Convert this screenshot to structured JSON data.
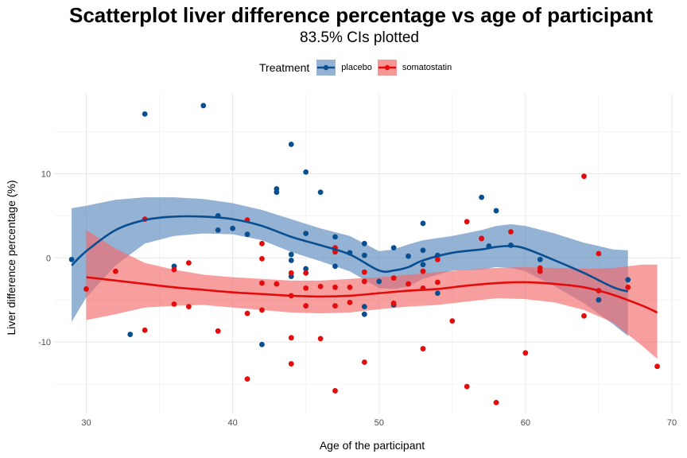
{
  "chart_data": {
    "type": "scatter",
    "title": "Scatterplot liver difference percentage vs age of participant",
    "subtitle": "83.5% CIs plotted",
    "xlabel": "Age of the participant",
    "ylabel": "Liver difference percentage (%)",
    "xlim": [
      27.8,
      70.6
    ],
    "ylim": [
      -18.5,
      19.5
    ],
    "x_ticks": [
      30,
      40,
      50,
      60,
      70
    ],
    "y_ticks": [
      -10,
      0,
      10
    ],
    "grid": true,
    "legend": {
      "title": "Treatment",
      "position": "top"
    },
    "series": [
      {
        "name": "placebo",
        "color": "#084f91",
        "band_color": "#5a88bb",
        "points": [
          [
            29,
            -0.2
          ],
          [
            33,
            -9.1
          ],
          [
            34,
            17.1
          ],
          [
            36,
            -1.0
          ],
          [
            38,
            18.1
          ],
          [
            39,
            5.0
          ],
          [
            39,
            3.3
          ],
          [
            40,
            3.5
          ],
          [
            41,
            2.8
          ],
          [
            42,
            -10.3
          ],
          [
            43,
            8.2
          ],
          [
            43,
            7.8
          ],
          [
            44,
            13.5
          ],
          [
            44,
            0.4
          ],
          [
            44,
            -0.3
          ],
          [
            44,
            -2.2
          ],
          [
            45,
            10.2
          ],
          [
            45,
            2.9
          ],
          [
            45,
            -1.3
          ],
          [
            46,
            7.8
          ],
          [
            47,
            2.5
          ],
          [
            47,
            0.9
          ],
          [
            47,
            -1.0
          ],
          [
            48,
            0.6
          ],
          [
            49,
            1.7
          ],
          [
            49,
            0.3
          ],
          [
            49,
            -5.8
          ],
          [
            49,
            -6.7
          ],
          [
            50,
            -2.8
          ],
          [
            51,
            1.2
          ],
          [
            51,
            -5.6
          ],
          [
            52,
            0.2
          ],
          [
            53,
            4.1
          ],
          [
            53,
            0.9
          ],
          [
            53,
            -0.8
          ],
          [
            54,
            0.3
          ],
          [
            54,
            -4.2
          ],
          [
            57,
            7.2
          ],
          [
            57,
            2.3
          ],
          [
            57.5,
            1.4
          ],
          [
            58,
            5.6
          ],
          [
            59,
            1.5
          ],
          [
            61,
            -0.2
          ],
          [
            65,
            -5.0
          ],
          [
            67,
            -2.6
          ]
        ],
        "smooth": [
          [
            29,
            -0.9
          ],
          [
            30,
            0.8
          ],
          [
            32,
            3.3
          ],
          [
            34,
            4.5
          ],
          [
            36,
            4.9
          ],
          [
            38,
            4.9
          ],
          [
            40,
            4.6
          ],
          [
            42,
            3.8
          ],
          [
            44,
            2.5
          ],
          [
            46,
            1.5
          ],
          [
            48,
            0.4
          ],
          [
            50,
            -1.5
          ],
          [
            51,
            -1.5
          ],
          [
            52,
            -1.1
          ],
          [
            53,
            -0.3
          ],
          [
            55,
            0.6
          ],
          [
            57,
            1.0
          ],
          [
            58,
            1.3
          ],
          [
            59,
            1.4
          ],
          [
            60,
            1.1
          ],
          [
            62,
            -0.3
          ],
          [
            64,
            -1.8
          ],
          [
            66,
            -3.5
          ],
          [
            67,
            -4.0
          ]
        ],
        "ci_upper": [
          [
            29,
            5.9
          ],
          [
            30,
            6.2
          ],
          [
            32,
            6.9
          ],
          [
            34,
            7.2
          ],
          [
            36,
            7.2
          ],
          [
            38,
            7.0
          ],
          [
            40,
            6.5
          ],
          [
            42,
            5.7
          ],
          [
            44,
            4.6
          ],
          [
            46,
            3.5
          ],
          [
            48,
            2.6
          ],
          [
            50,
            0.8
          ],
          [
            51,
            1.0
          ],
          [
            52,
            1.6
          ],
          [
            53,
            2.1
          ],
          [
            55,
            2.6
          ],
          [
            57,
            3.3
          ],
          [
            58,
            3.8
          ],
          [
            59,
            4.0
          ],
          [
            60,
            3.8
          ],
          [
            62,
            2.9
          ],
          [
            64,
            1.8
          ],
          [
            66,
            1.0
          ],
          [
            67,
            0.9
          ]
        ],
        "ci_lower": [
          [
            29,
            -7.6
          ],
          [
            30,
            -4.7
          ],
          [
            32,
            -0.9
          ],
          [
            34,
            1.7
          ],
          [
            36,
            2.6
          ],
          [
            38,
            2.9
          ],
          [
            40,
            2.8
          ],
          [
            42,
            2.1
          ],
          [
            44,
            0.7
          ],
          [
            46,
            -0.4
          ],
          [
            48,
            -1.6
          ],
          [
            50,
            -3.6
          ],
          [
            51,
            -3.7
          ],
          [
            52,
            -3.4
          ],
          [
            53,
            -2.5
          ],
          [
            55,
            -1.5
          ],
          [
            57,
            -1.4
          ],
          [
            58,
            -1.1
          ],
          [
            59,
            -1.2
          ],
          [
            60,
            -1.6
          ],
          [
            62,
            -3.4
          ],
          [
            64,
            -5.4
          ],
          [
            66,
            -7.9
          ],
          [
            67,
            -9.3
          ]
        ]
      },
      {
        "name": "somatostatin",
        "color": "#e30b0b",
        "band_color": "#f36a6a",
        "points": [
          [
            30,
            -3.7
          ],
          [
            32,
            -1.6
          ],
          [
            34,
            4.6
          ],
          [
            34,
            -8.6
          ],
          [
            36,
            -1.4
          ],
          [
            36,
            -5.5
          ],
          [
            37,
            -0.6
          ],
          [
            37,
            -5.8
          ],
          [
            39,
            -8.7
          ],
          [
            41,
            4.5
          ],
          [
            41,
            -6.6
          ],
          [
            41,
            -14.4
          ],
          [
            42,
            1.7
          ],
          [
            42,
            -0.1
          ],
          [
            42,
            -3.0
          ],
          [
            42,
            -6.2
          ],
          [
            43,
            -3.1
          ],
          [
            44,
            -1.8
          ],
          [
            44,
            -4.5
          ],
          [
            44,
            -9.5
          ],
          [
            44,
            -12.6
          ],
          [
            45,
            -1.8
          ],
          [
            45,
            -3.6
          ],
          [
            45,
            -5.7
          ],
          [
            46,
            -3.4
          ],
          [
            46,
            -9.6
          ],
          [
            47,
            1.2
          ],
          [
            47,
            0.7
          ],
          [
            47,
            -3.5
          ],
          [
            47,
            -5.7
          ],
          [
            47,
            -15.8
          ],
          [
            48,
            -3.5
          ],
          [
            48,
            -5.3
          ],
          [
            49,
            -1.7
          ],
          [
            49,
            -2.8
          ],
          [
            49,
            -12.4
          ],
          [
            51,
            -2.4
          ],
          [
            51,
            -5.4
          ],
          [
            52,
            -3.1
          ],
          [
            53,
            -1.6
          ],
          [
            53,
            -3.6
          ],
          [
            53,
            -10.8
          ],
          [
            54,
            -0.2
          ],
          [
            54,
            -2.9
          ],
          [
            55,
            -7.5
          ],
          [
            56,
            4.3
          ],
          [
            56,
            -15.3
          ],
          [
            57,
            2.3
          ],
          [
            58,
            -17.2
          ],
          [
            59,
            3.1
          ],
          [
            60,
            -11.3
          ],
          [
            61,
            -1.2
          ],
          [
            61,
            -1.6
          ],
          [
            64,
            9.7
          ],
          [
            64,
            -6.9
          ],
          [
            65,
            0.5
          ],
          [
            65,
            -3.9
          ],
          [
            67,
            -3.5
          ],
          [
            69,
            -12.9
          ]
        ],
        "smooth": [
          [
            30,
            -2.3
          ],
          [
            32,
            -2.7
          ],
          [
            34,
            -3.1
          ],
          [
            36,
            -3.5
          ],
          [
            38,
            -3.8
          ],
          [
            40,
            -4.1
          ],
          [
            42,
            -4.3
          ],
          [
            44,
            -4.5
          ],
          [
            46,
            -4.6
          ],
          [
            48,
            -4.5
          ],
          [
            50,
            -4.2
          ],
          [
            52,
            -3.9
          ],
          [
            54,
            -3.7
          ],
          [
            56,
            -3.3
          ],
          [
            58,
            -3.0
          ],
          [
            60,
            -2.9
          ],
          [
            62,
            -3.1
          ],
          [
            64,
            -3.5
          ],
          [
            66,
            -4.4
          ],
          [
            68,
            -5.7
          ],
          [
            69,
            -6.5
          ]
        ],
        "ci_upper": [
          [
            30,
            3.3
          ],
          [
            32,
            1.1
          ],
          [
            34,
            -0.6
          ],
          [
            36,
            -1.4
          ],
          [
            38,
            -2.0
          ],
          [
            40,
            -2.3
          ],
          [
            42,
            -2.5
          ],
          [
            44,
            -2.7
          ],
          [
            46,
            -2.7
          ],
          [
            48,
            -2.5
          ],
          [
            50,
            -2.3
          ],
          [
            52,
            -2.0
          ],
          [
            54,
            -1.7
          ],
          [
            56,
            -1.4
          ],
          [
            58,
            -1.2
          ],
          [
            60,
            -1.1
          ],
          [
            62,
            -1.2
          ],
          [
            64,
            -1.3
          ],
          [
            66,
            -1.2
          ],
          [
            68,
            -0.8
          ],
          [
            69,
            -0.8
          ]
        ],
        "ci_lower": [
          [
            30,
            -7.4
          ],
          [
            32,
            -6.7
          ],
          [
            34,
            -5.9
          ],
          [
            36,
            -5.7
          ],
          [
            38,
            -5.6
          ],
          [
            40,
            -5.9
          ],
          [
            42,
            -6.2
          ],
          [
            44,
            -6.5
          ],
          [
            46,
            -6.6
          ],
          [
            48,
            -6.5
          ],
          [
            50,
            -6.1
          ],
          [
            52,
            -5.8
          ],
          [
            54,
            -5.6
          ],
          [
            56,
            -5.2
          ],
          [
            58,
            -4.8
          ],
          [
            60,
            -4.9
          ],
          [
            62,
            -5.3
          ],
          [
            64,
            -6.2
          ],
          [
            66,
            -7.7
          ],
          [
            68,
            -10.5
          ],
          [
            69,
            -12.0
          ]
        ]
      }
    ]
  }
}
